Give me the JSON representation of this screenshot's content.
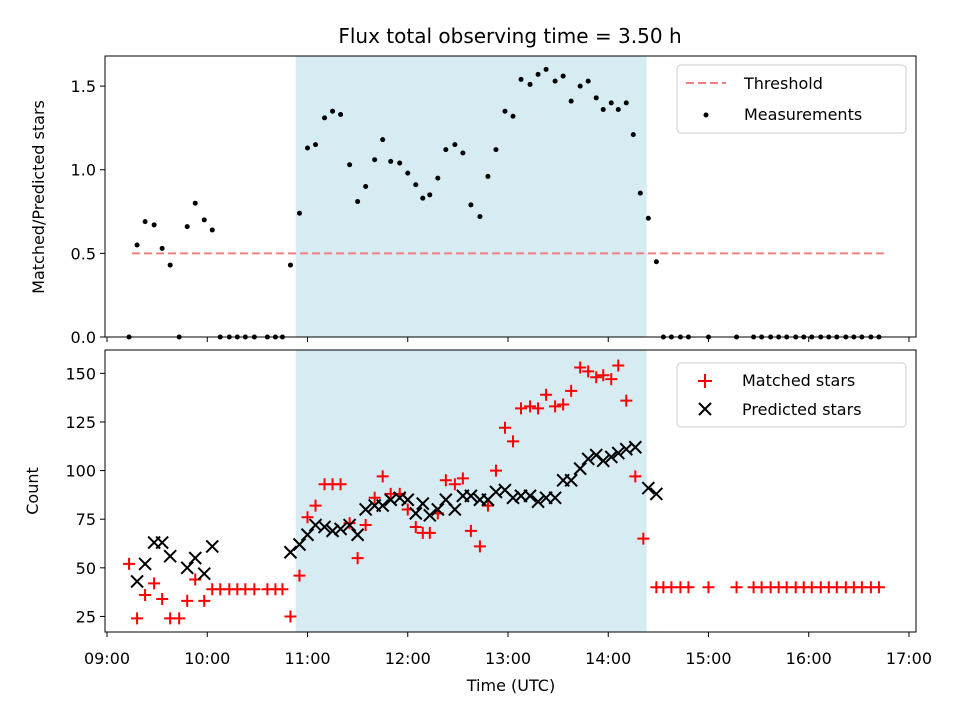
{
  "chart_data": {
    "type": "scatter",
    "title": "Flux total observing time = 3.50 h",
    "xlabel": "Time (UTC)",
    "x_ticks": [
      "09:00",
      "10:00",
      "11:00",
      "12:00",
      "13:00",
      "14:00",
      "15:00",
      "16:00",
      "17:00"
    ],
    "xlim_hours": [
      8.98,
      17.07
    ],
    "shaded_interval_hours": [
      10.883,
      14.383
    ],
    "colors": {
      "shade": "#add8e6",
      "threshold": "#f08080",
      "measurement": "#000000",
      "matched": "#ff0000",
      "predicted": "#000000"
    },
    "top": {
      "ylabel": "Matched/Predicted stars",
      "ylim": [
        0,
        1.68
      ],
      "y_ticks": [
        "0.0",
        "0.5",
        "1.0",
        "1.5"
      ],
      "y_tick_values": [
        0,
        0.5,
        1.0,
        1.5
      ],
      "threshold": {
        "value": 0.5,
        "x_range_hours": [
          9.25,
          16.75
        ],
        "label": "Threshold"
      },
      "measurements_label": "Measurements",
      "measurements": [
        [
          9.22,
          0.0
        ],
        [
          9.3,
          0.55
        ],
        [
          9.38,
          0.69
        ],
        [
          9.47,
          0.67
        ],
        [
          9.55,
          0.53
        ],
        [
          9.63,
          0.43
        ],
        [
          9.72,
          0.0
        ],
        [
          9.8,
          0.66
        ],
        [
          9.88,
          0.8
        ],
        [
          9.97,
          0.7
        ],
        [
          10.05,
          0.64
        ],
        [
          10.13,
          0.0
        ],
        [
          10.22,
          0.0
        ],
        [
          10.3,
          0.0
        ],
        [
          10.38,
          0.0
        ],
        [
          10.47,
          0.0
        ],
        [
          10.6,
          0.0
        ],
        [
          10.68,
          0.0
        ],
        [
          10.75,
          0.0
        ],
        [
          10.83,
          0.43
        ],
        [
          10.92,
          0.74
        ],
        [
          11.0,
          1.13
        ],
        [
          11.08,
          1.15
        ],
        [
          11.17,
          1.31
        ],
        [
          11.25,
          1.35
        ],
        [
          11.33,
          1.33
        ],
        [
          11.42,
          1.03
        ],
        [
          11.5,
          0.81
        ],
        [
          11.58,
          0.9
        ],
        [
          11.67,
          1.06
        ],
        [
          11.75,
          1.18
        ],
        [
          11.83,
          1.05
        ],
        [
          11.92,
          1.04
        ],
        [
          12.0,
          0.98
        ],
        [
          12.08,
          0.91
        ],
        [
          12.15,
          0.83
        ],
        [
          12.22,
          0.85
        ],
        [
          12.3,
          0.95
        ],
        [
          12.38,
          1.12
        ],
        [
          12.47,
          1.15
        ],
        [
          12.55,
          1.1
        ],
        [
          12.63,
          0.79
        ],
        [
          12.72,
          0.72
        ],
        [
          12.8,
          0.96
        ],
        [
          12.88,
          1.12
        ],
        [
          12.97,
          1.35
        ],
        [
          13.05,
          1.32
        ],
        [
          13.13,
          1.54
        ],
        [
          13.22,
          1.51
        ],
        [
          13.3,
          1.57
        ],
        [
          13.38,
          1.6
        ],
        [
          13.47,
          1.53
        ],
        [
          13.55,
          1.56
        ],
        [
          13.63,
          1.41
        ],
        [
          13.72,
          1.5
        ],
        [
          13.8,
          1.53
        ],
        [
          13.88,
          1.43
        ],
        [
          13.95,
          1.36
        ],
        [
          14.03,
          1.4
        ],
        [
          14.1,
          1.36
        ],
        [
          14.18,
          1.4
        ],
        [
          14.25,
          1.21
        ],
        [
          14.32,
          0.86
        ],
        [
          14.4,
          0.71
        ],
        [
          14.48,
          0.45
        ],
        [
          14.55,
          0.0
        ],
        [
          14.63,
          0.0
        ],
        [
          14.72,
          0.0
        ],
        [
          14.8,
          0.0
        ],
        [
          15.0,
          0.0
        ],
        [
          15.28,
          0.0
        ],
        [
          15.45,
          0.0
        ],
        [
          15.53,
          0.0
        ],
        [
          15.62,
          0.0
        ],
        [
          15.7,
          0.0
        ],
        [
          15.78,
          0.0
        ],
        [
          15.87,
          0.0
        ],
        [
          15.95,
          0.0
        ],
        [
          16.03,
          0.0
        ],
        [
          16.12,
          0.0
        ],
        [
          16.2,
          0.0
        ],
        [
          16.28,
          0.0
        ],
        [
          16.37,
          0.0
        ],
        [
          16.45,
          0.0
        ],
        [
          16.53,
          0.0
        ],
        [
          16.62,
          0.0
        ],
        [
          16.7,
          0.0
        ]
      ]
    },
    "bottom": {
      "ylabel": "Count",
      "ylim": [
        17,
        162
      ],
      "y_ticks": [
        "25",
        "50",
        "75",
        "100",
        "125",
        "150"
      ],
      "y_tick_values": [
        25,
        50,
        75,
        100,
        125,
        150
      ],
      "matched_label": "Matched stars",
      "predicted_label": "Predicted stars",
      "matched": [
        [
          9.22,
          52
        ],
        [
          9.3,
          24
        ],
        [
          9.38,
          36
        ],
        [
          9.47,
          42
        ],
        [
          9.55,
          34
        ],
        [
          9.63,
          24
        ],
        [
          9.72,
          24
        ],
        [
          9.8,
          33
        ],
        [
          9.88,
          44
        ],
        [
          9.97,
          33
        ],
        [
          10.05,
          39
        ],
        [
          10.13,
          39
        ],
        [
          10.22,
          39
        ],
        [
          10.3,
          39
        ],
        [
          10.38,
          39
        ],
        [
          10.47,
          39
        ],
        [
          10.6,
          39
        ],
        [
          10.68,
          39
        ],
        [
          10.75,
          39
        ],
        [
          10.83,
          25
        ],
        [
          10.92,
          46
        ],
        [
          11.0,
          76
        ],
        [
          11.08,
          82
        ],
        [
          11.17,
          93
        ],
        [
          11.25,
          93
        ],
        [
          11.33,
          93
        ],
        [
          11.42,
          73
        ],
        [
          11.5,
          55
        ],
        [
          11.58,
          72
        ],
        [
          11.67,
          86
        ],
        [
          11.75,
          97
        ],
        [
          11.83,
          88
        ],
        [
          11.92,
          88
        ],
        [
          12.0,
          80
        ],
        [
          12.08,
          71
        ],
        [
          12.15,
          68
        ],
        [
          12.22,
          68
        ],
        [
          12.3,
          78
        ],
        [
          12.38,
          95
        ],
        [
          12.47,
          93
        ],
        [
          12.55,
          96
        ],
        [
          12.63,
          69
        ],
        [
          12.72,
          61
        ],
        [
          12.8,
          82
        ],
        [
          12.88,
          100
        ],
        [
          12.97,
          122
        ],
        [
          13.05,
          115
        ],
        [
          13.13,
          132
        ],
        [
          13.22,
          133
        ],
        [
          13.3,
          132
        ],
        [
          13.38,
          139
        ],
        [
          13.47,
          133
        ],
        [
          13.55,
          134
        ],
        [
          13.63,
          141
        ],
        [
          13.72,
          153
        ],
        [
          13.8,
          151
        ],
        [
          13.88,
          148
        ],
        [
          13.95,
          149
        ],
        [
          14.03,
          147
        ],
        [
          14.1,
          154
        ],
        [
          14.18,
          136
        ],
        [
          14.27,
          97
        ],
        [
          14.35,
          65
        ],
        [
          14.48,
          40
        ],
        [
          14.55,
          40
        ],
        [
          14.63,
          40
        ],
        [
          14.72,
          40
        ],
        [
          14.8,
          40
        ],
        [
          15.0,
          40
        ],
        [
          15.28,
          40
        ],
        [
          15.45,
          40
        ],
        [
          15.53,
          40
        ],
        [
          15.62,
          40
        ],
        [
          15.7,
          40
        ],
        [
          15.78,
          40
        ],
        [
          15.87,
          40
        ],
        [
          15.95,
          40
        ],
        [
          16.03,
          40
        ],
        [
          16.12,
          40
        ],
        [
          16.2,
          40
        ],
        [
          16.28,
          40
        ],
        [
          16.37,
          40
        ],
        [
          16.45,
          40
        ],
        [
          16.53,
          40
        ],
        [
          16.62,
          40
        ],
        [
          16.7,
          40
        ]
      ],
      "predicted": [
        [
          9.3,
          43
        ],
        [
          9.38,
          52
        ],
        [
          9.47,
          63
        ],
        [
          9.55,
          63
        ],
        [
          9.63,
          56
        ],
        [
          9.8,
          50
        ],
        [
          9.88,
          55
        ],
        [
          9.97,
          47
        ],
        [
          10.05,
          61
        ],
        [
          10.83,
          58
        ],
        [
          10.92,
          62
        ],
        [
          11.0,
          67
        ],
        [
          11.08,
          72
        ],
        [
          11.17,
          71
        ],
        [
          11.25,
          69
        ],
        [
          11.33,
          70
        ],
        [
          11.42,
          72
        ],
        [
          11.5,
          67
        ],
        [
          11.58,
          80
        ],
        [
          11.67,
          82
        ],
        [
          11.75,
          82
        ],
        [
          11.83,
          85
        ],
        [
          11.92,
          86
        ],
        [
          12.0,
          85
        ],
        [
          12.08,
          78
        ],
        [
          12.15,
          83
        ],
        [
          12.22,
          77
        ],
        [
          12.3,
          80
        ],
        [
          12.38,
          85
        ],
        [
          12.47,
          80
        ],
        [
          12.55,
          87
        ],
        [
          12.63,
          87
        ],
        [
          12.72,
          85
        ],
        [
          12.8,
          85
        ],
        [
          12.88,
          89
        ],
        [
          12.97,
          90
        ],
        [
          13.05,
          86
        ],
        [
          13.13,
          87
        ],
        [
          13.22,
          87
        ],
        [
          13.3,
          84
        ],
        [
          13.38,
          86
        ],
        [
          13.47,
          86
        ],
        [
          13.55,
          95
        ],
        [
          13.63,
          95
        ],
        [
          13.72,
          101
        ],
        [
          13.8,
          106
        ],
        [
          13.88,
          108
        ],
        [
          13.95,
          105
        ],
        [
          14.03,
          107
        ],
        [
          14.1,
          109
        ],
        [
          14.18,
          111
        ],
        [
          14.27,
          112
        ],
        [
          14.4,
          91
        ],
        [
          14.48,
          88
        ]
      ]
    }
  }
}
